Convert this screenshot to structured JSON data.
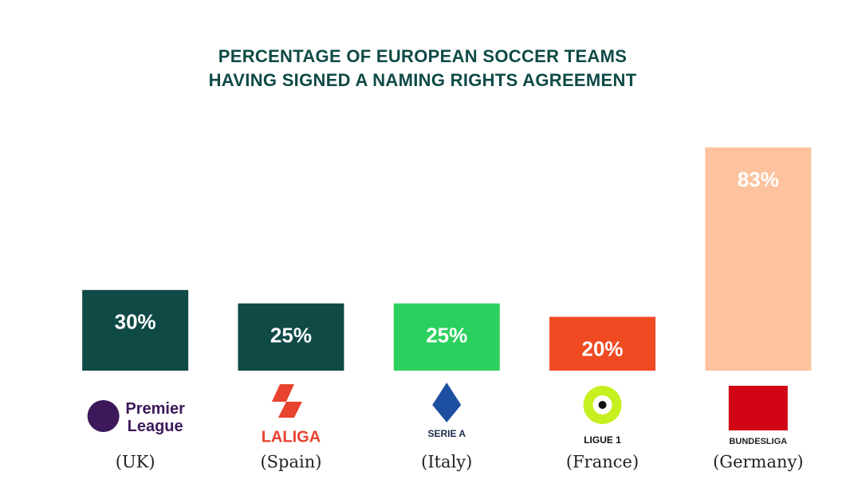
{
  "chart_data": {
    "type": "bar",
    "title": "PERCENTAGE OF EUROPEAN SOCCER TEAMS HAVING SIGNED A NAMING RIGHTS AGREEMENT",
    "categories": [
      "(UK)",
      "(Spain)",
      "(Italy)",
      "(France)",
      "(Germany)"
    ],
    "logo_texts": [
      "Premier League",
      "LALIGA",
      "SERIE A",
      "LIGUE 1",
      "BUNDESLIGA"
    ],
    "values": [
      30,
      25,
      25,
      20,
      83
    ],
    "value_labels": [
      "30%",
      "25%",
      "25%",
      "20%",
      "83%"
    ],
    "colors": [
      "#0f4a47",
      "#0f4a47",
      "#2bd05e",
      "#f04a23",
      "#fcc39e"
    ]
  }
}
